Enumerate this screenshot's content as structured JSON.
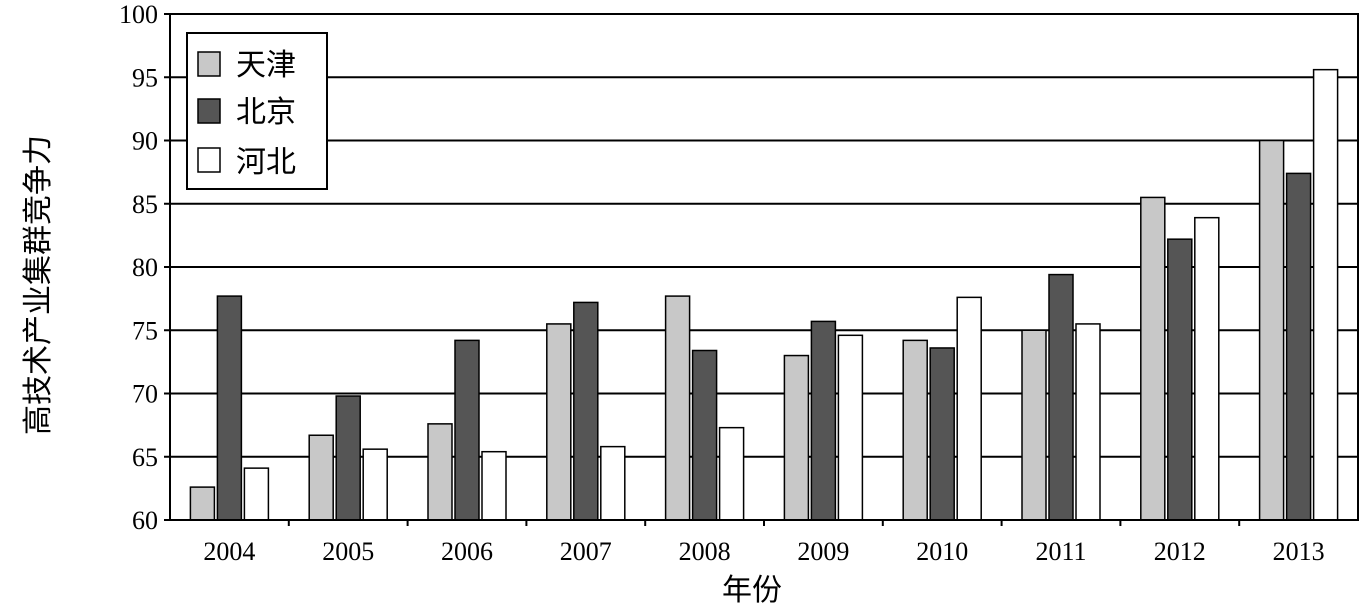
{
  "chart_data": {
    "type": "bar",
    "title": "",
    "xlabel": "年份",
    "ylabel": "高技术产业集群竞争力",
    "categories": [
      "2004",
      "2005",
      "2006",
      "2007",
      "2008",
      "2009",
      "2010",
      "2011",
      "2012",
      "2013"
    ],
    "ylim": [
      60,
      100
    ],
    "yticks": [
      60,
      65,
      70,
      75,
      80,
      85,
      90,
      95,
      100
    ],
    "grid": true,
    "legend_position": "top-left",
    "series": [
      {
        "name": "天津",
        "color": "#c8c8c8",
        "values": [
          62.6,
          66.7,
          67.6,
          75.5,
          77.7,
          73.0,
          74.2,
          75.0,
          85.5,
          90.0
        ]
      },
      {
        "name": "北京",
        "color": "#555555",
        "values": [
          77.7,
          69.8,
          74.2,
          77.2,
          73.4,
          75.7,
          73.6,
          79.4,
          82.2,
          87.4
        ]
      },
      {
        "name": "河北",
        "color": "#ffffff",
        "values": [
          64.1,
          65.6,
          65.4,
          65.8,
          67.3,
          74.6,
          77.6,
          75.5,
          83.9,
          95.6
        ]
      }
    ]
  }
}
